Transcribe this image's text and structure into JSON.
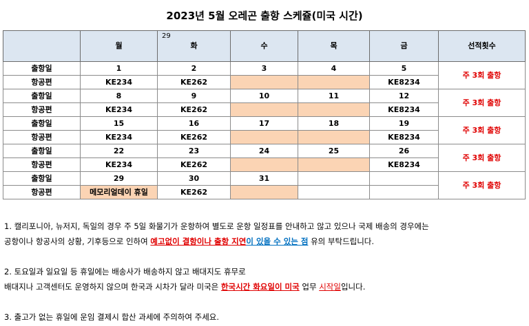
{
  "title": "2023년 5월 오레곤 출항 스케쥴(미국 시간)",
  "headers": {
    "corner": "",
    "mon": "월",
    "tue_sup": "29",
    "tue": "화",
    "wed": "수",
    "thu": "목",
    "fri": "금",
    "count": "선적횟수"
  },
  "row_labels": {
    "date": "출항일",
    "flight": "항공편"
  },
  "weeks": [
    {
      "dates": [
        "1",
        "2",
        "3",
        "4",
        "5"
      ],
      "flights": [
        "KE234",
        "KE262",
        "",
        "",
        "KE8234"
      ],
      "note": "주 3회 출항"
    },
    {
      "dates": [
        "8",
        "9",
        "10",
        "11",
        "12"
      ],
      "flights": [
        "KE234",
        "KE262",
        "",
        "",
        "KE8234"
      ],
      "note": "주 3회 출항"
    },
    {
      "dates": [
        "15",
        "16",
        "17",
        "18",
        "19"
      ],
      "flights": [
        "KE234",
        "KE262",
        "",
        "",
        "KE8234"
      ],
      "note": "주 3회 출항"
    },
    {
      "dates": [
        "22",
        "23",
        "24",
        "25",
        "26"
      ],
      "flights": [
        "KE234",
        "KE262",
        "",
        "",
        "KE8234"
      ],
      "note": "주 3회 출항"
    },
    {
      "dates": [
        "29",
        "30",
        "31",
        "",
        ""
      ],
      "flights": [
        "메모리얼데이 휴일",
        "KE262",
        "",
        "",
        ""
      ],
      "note": "주 3회 출항"
    }
  ],
  "notes": {
    "n1_line1": "1. 캘리포니아, 뉴저지, 독일의 경우 주 5일 화물기가 운항하여 별도로 운항 일정표를 안내하고 않고 있으나 국제 배송의 경우에는",
    "n1_line2_pre": "공항이나 항공사의 상황, 기후등으로 인하여 ",
    "n1_line2_red": "예고없이 결항이나 출항 지연",
    "n1_line2_blue": "이 있을 수 있는 점",
    "n1_line2_post": " 유의 부탁드립니다.",
    "n2_line1": "2. 토요일과 일요일 등 휴일에는 배송사가 배송하지 않고 배대지도 휴무로",
    "n2_line2_pre": "배대지나 고객센터도 운영하지 않으며 한국과 시차가 달라 미국은 ",
    "n2_line2_red": "한국시간 화요일이 미국",
    "n2_line2_mid": " 업무 ",
    "n2_line2_red2": "시작일",
    "n2_line2_post": "입니다.",
    "n3": "3. 출고가 없는 휴일에 운임 결제시 합산 과세에 주의하여 주세요."
  }
}
